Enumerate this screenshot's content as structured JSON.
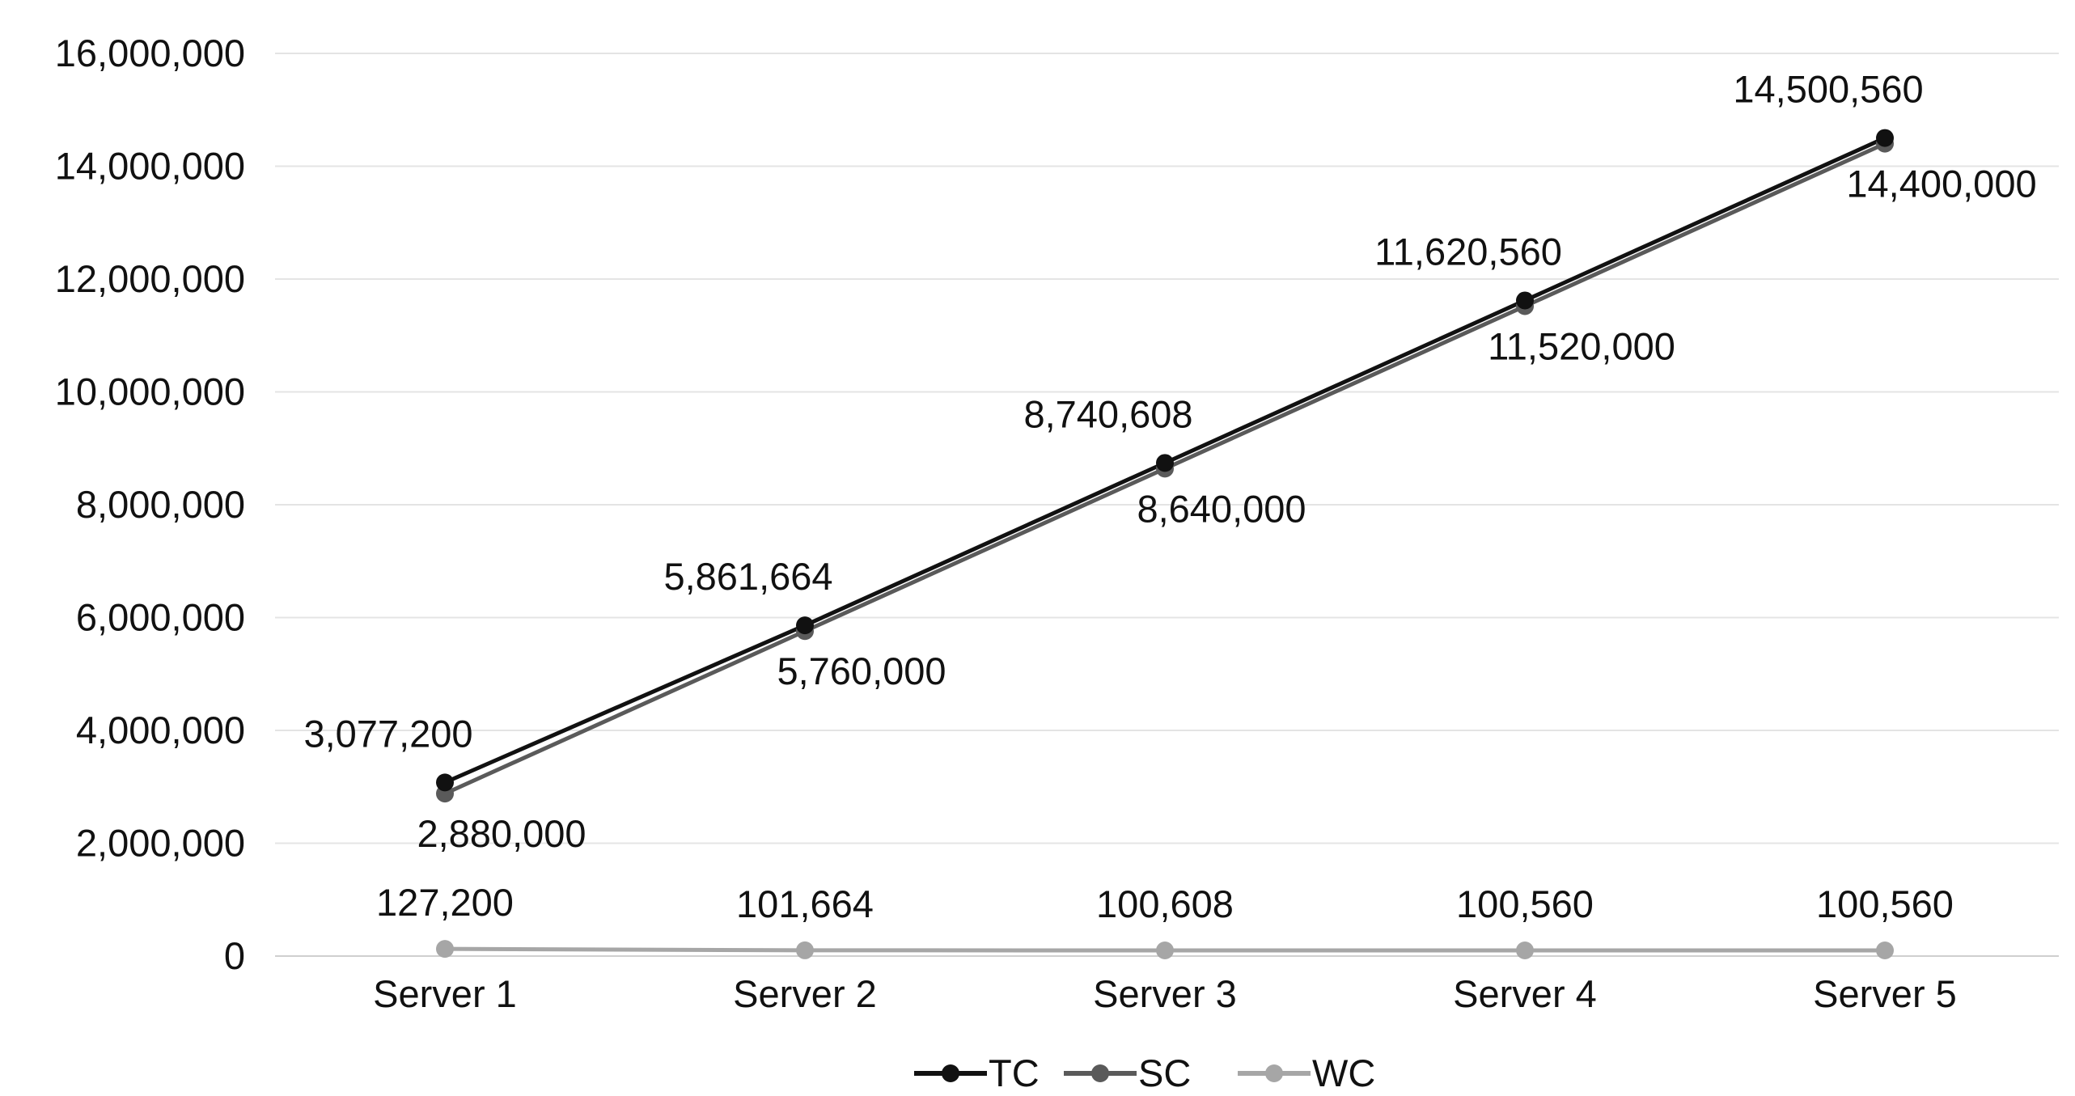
{
  "chart_data": {
    "type": "line",
    "title": "",
    "xlabel": "",
    "ylabel": "",
    "categories": [
      "Server 1",
      "Server 2",
      "Server 3",
      "Server 4",
      "Server 5"
    ],
    "ylim": [
      0,
      16000000
    ],
    "yticks": [
      0,
      2000000,
      4000000,
      6000000,
      8000000,
      10000000,
      12000000,
      14000000,
      16000000
    ],
    "ytick_labels": [
      "0",
      "2,000,000",
      "4,000,000",
      "6,000,000",
      "8,000,000",
      "10,000,000",
      "12,000,000",
      "14,000,000",
      "16,000,000"
    ],
    "grid": true,
    "legend_position": "bottom",
    "series": [
      {
        "name": "TC",
        "color": "#111111",
        "values": [
          3077200,
          5861664,
          8740608,
          11620560,
          14500560
        ],
        "labels": [
          "3,077,200",
          "5,861,664",
          "8,740,608",
          "11,620,560",
          "14,500,560"
        ]
      },
      {
        "name": "SC",
        "color": "#5a5a5a",
        "values": [
          2880000,
          5760000,
          8640000,
          11520000,
          14400000
        ],
        "labels": [
          "2,880,000",
          "5,760,000",
          "8,640,000",
          "11,520,000",
          "14,400,000"
        ]
      },
      {
        "name": "WC",
        "color": "#a6a6a6",
        "values": [
          127200,
          101664,
          100608,
          100560,
          100560
        ],
        "labels": [
          "127,200",
          "101,664",
          "100,608",
          "100,560",
          "100,560"
        ]
      }
    ]
  }
}
